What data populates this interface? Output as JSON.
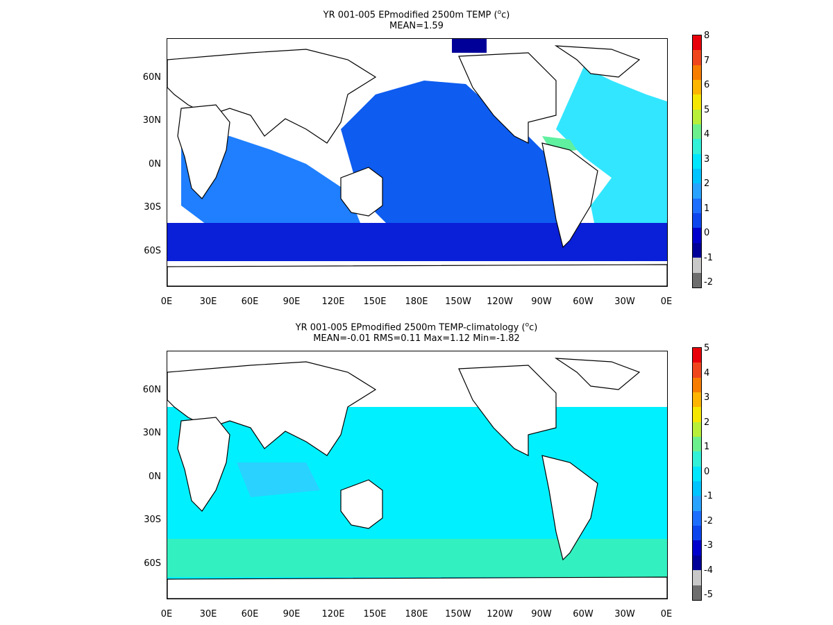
{
  "panels": [
    {
      "id": "top",
      "title_main": "YR 001-005 EPmodified 2500m TEMP (",
      "title_sup": "o",
      "title_end": "c)",
      "subtitle": "MEAN=1.59",
      "colorbar": {
        "labels": [
          "8",
          "7",
          "6",
          "5",
          "4",
          "3",
          "2",
          "1",
          "0",
          "-1",
          "-2"
        ],
        "colors": [
          "#e8000b",
          "#f0461e",
          "#f77d00",
          "#fdb500",
          "#f6e700",
          "#b8ef3a",
          "#6cf08e",
          "#33f0d8",
          "#00e6ff",
          "#00c4ff",
          "#2aa3ff",
          "#1f6fff",
          "#0e46ee",
          "#0000cc",
          "#000099",
          "#c8c8c8",
          "#6e6e6e"
        ]
      }
    },
    {
      "id": "bottom",
      "title_main": "YR 001-005 EPmodified 2500m TEMP-climatology (",
      "title_sup": "o",
      "title_end": "c)",
      "subtitle": "MEAN=-0.01   RMS=0.11   Max=1.12   Min=-1.82",
      "colorbar": {
        "labels": [
          "5",
          "4",
          "3",
          "2",
          "1",
          "0",
          "-1",
          "-2",
          "-3",
          "-4",
          "-5"
        ],
        "colors": [
          "#e8000b",
          "#f0461e",
          "#f77d00",
          "#fdb500",
          "#f6e700",
          "#b8ef3a",
          "#6cf08e",
          "#33f0d8",
          "#00e6ff",
          "#00c4ff",
          "#2aa3ff",
          "#1f6fff",
          "#0e46ee",
          "#0000cc",
          "#000099",
          "#c8c8c8",
          "#6e6e6e"
        ]
      }
    }
  ],
  "lat_ticks": [
    "60N",
    "30N",
    "0N",
    "30S",
    "60S"
  ],
  "lon_ticks": [
    "0E",
    "30E",
    "60E",
    "90E",
    "120E",
    "150E",
    "180E",
    "150W",
    "120W",
    "90W",
    "60W",
    "30W",
    "0E"
  ],
  "ocean_colors": {
    "top": {
      "pacific": "#0e5cf0",
      "indian": "#1f7fff",
      "southern": "#0a1fd8",
      "atlantic": "#33e6ff",
      "caribbean": "#5ff0a0"
    },
    "bottom": {
      "main": "#00f0ff",
      "southern": "#33f0c0",
      "patch": "#2ad2ff"
    }
  }
}
